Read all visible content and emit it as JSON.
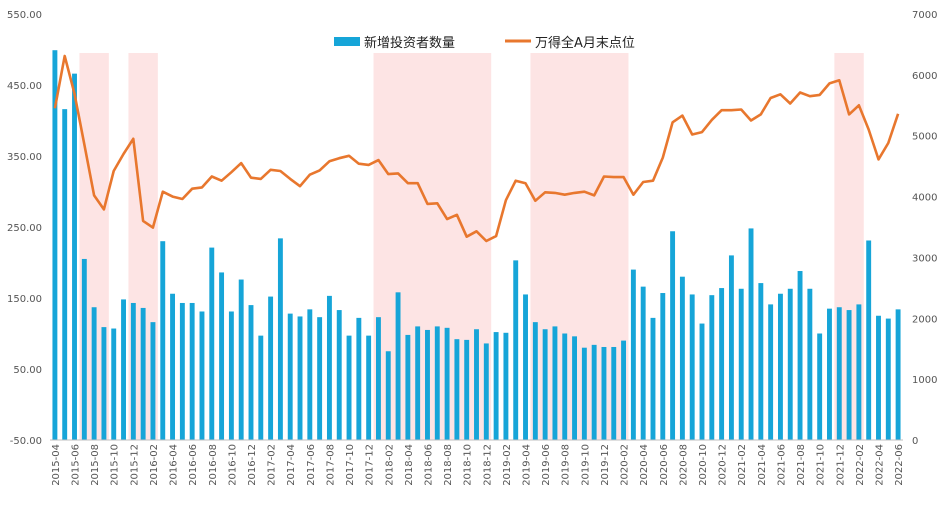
{
  "chart_data": {
    "type": "bar+line",
    "title": "",
    "legend_position": "top-center",
    "colors": {
      "bar": "#16A5D8",
      "line": "#E8772E",
      "shade": "#FDE4E4"
    },
    "left_axis": {
      "min": -50,
      "max": 550,
      "ticks": [
        "-50.00",
        "50.00",
        "150.00",
        "250.00",
        "350.00",
        "450.00",
        "550.00"
      ]
    },
    "right_axis": {
      "min": 0,
      "max": 7000,
      "ticks": [
        "0",
        "1000",
        "2000",
        "3000",
        "4000",
        "5000",
        "6000",
        "7000"
      ]
    },
    "categories": [
      "2015-04",
      "2015-05",
      "2015-06",
      "2015-07",
      "2015-08",
      "2015-09",
      "2015-10",
      "2015-11",
      "2015-12",
      "2016-01",
      "2016-02",
      "2016-03",
      "2016-04",
      "2016-05",
      "2016-06",
      "2016-07",
      "2016-08",
      "2016-09",
      "2016-10",
      "2016-11",
      "2016-12",
      "2017-01",
      "2017-02",
      "2017-03",
      "2017-04",
      "2017-05",
      "2017-06",
      "2017-07",
      "2017-08",
      "2017-09",
      "2017-10",
      "2017-11",
      "2017-12",
      "2018-01",
      "2018-02",
      "2018-03",
      "2018-04",
      "2018-05",
      "2018-06",
      "2018-07",
      "2018-08",
      "2018-09",
      "2018-10",
      "2018-11",
      "2018-12",
      "2019-01",
      "2019-02",
      "2019-03",
      "2019-04",
      "2019-05",
      "2019-06",
      "2019-07",
      "2019-08",
      "2019-09",
      "2019-10",
      "2019-11",
      "2019-12",
      "2020-01",
      "2020-02",
      "2020-03",
      "2020-04",
      "2020-05",
      "2020-06",
      "2020-07",
      "2020-08",
      "2020-09",
      "2020-10",
      "2020-11",
      "2020-12",
      "2021-01",
      "2021-02",
      "2021-03",
      "2021-04",
      "2021-05",
      "2021-06",
      "2021-07",
      "2021-08",
      "2021-09",
      "2021-10",
      "2021-11",
      "2021-12",
      "2022-01",
      "2022-02",
      "2022-03",
      "2022-04",
      "2022-05",
      "2022-06"
    ],
    "x_tick_labels": [
      "2015-04",
      "2015-06",
      "2015-08",
      "2015-10",
      "2015-12",
      "2016-02",
      "2016-04",
      "2016-06",
      "2016-08",
      "2016-10",
      "2016-12",
      "2017-02",
      "2017-04",
      "2017-06",
      "2017-08",
      "2017-10",
      "2017-12",
      "2018-02",
      "2018-04",
      "2018-06",
      "2018-08",
      "2018-10",
      "2018-12",
      "2019-02",
      "2019-04",
      "2019-06",
      "2019-08",
      "2019-10",
      "2019-12",
      "2020-02",
      "2020-04",
      "2020-06",
      "2020-08",
      "2020-10",
      "2020-12",
      "2021-02",
      "2021-04",
      "2021-06",
      "2021-08",
      "2021-10",
      "2021-12",
      "2022-02",
      "2022-04",
      "2022-06"
    ],
    "series": [
      {
        "name": "新增投资者数量",
        "type": "bar",
        "axis": "left",
        "values": [
          499,
          416,
          466,
          205,
          137,
          109,
          107,
          148,
          143,
          136,
          116,
          230,
          156,
          143,
          143,
          131,
          221,
          186,
          131,
          176,
          140,
          97,
          152,
          234,
          128,
          124,
          134,
          123,
          153,
          133,
          97,
          122,
          97,
          123,
          75,
          158,
          98,
          110,
          105,
          110,
          108,
          92,
          91,
          106,
          86,
          102,
          101,
          203,
          155,
          116,
          106,
          110,
          100,
          96,
          80,
          84,
          81,
          81,
          90,
          190,
          166,
          122,
          157,
          244,
          180,
          155,
          114,
          154,
          164,
          210,
          163,
          248,
          171,
          141,
          156,
          163,
          188,
          163,
          100,
          135,
          137,
          133,
          141,
          231,
          125,
          121,
          134
        ]
      },
      {
        "name": "万得全A月末点位",
        "type": "line",
        "axis": "right",
        "values": [
          5450,
          6310,
          5690,
          4860,
          4020,
          3790,
          4420,
          4700,
          4950,
          3600,
          3490,
          4080,
          4000,
          3960,
          4130,
          4150,
          4330,
          4260,
          4400,
          4550,
          4310,
          4290,
          4440,
          4420,
          4290,
          4170,
          4360,
          4430,
          4580,
          4630,
          4670,
          4540,
          4520,
          4600,
          4370,
          4380,
          4220,
          4220,
          3880,
          3890,
          3630,
          3700,
          3340,
          3430,
          3270,
          3350,
          3940,
          4260,
          4220,
          3930,
          4070,
          4060,
          4030,
          4060,
          4080,
          4020,
          4330,
          4320,
          4320,
          4030,
          4240,
          4260,
          4640,
          5220,
          5330,
          5020,
          5060,
          5260,
          5420,
          5420,
          5430,
          5250,
          5350,
          5620,
          5680,
          5530,
          5710,
          5650,
          5670,
          5860,
          5910,
          5350,
          5500,
          5100,
          4610,
          4880,
          5360
        ]
      }
    ],
    "shaded_periods": [
      [
        "2015-07",
        "2015-09"
      ],
      [
        "2015-12",
        "2016-02"
      ],
      [
        "2018-01",
        "2018-12"
      ],
      [
        "2019-05",
        "2020-02"
      ],
      [
        "2021-12",
        "2022-02"
      ]
    ]
  }
}
